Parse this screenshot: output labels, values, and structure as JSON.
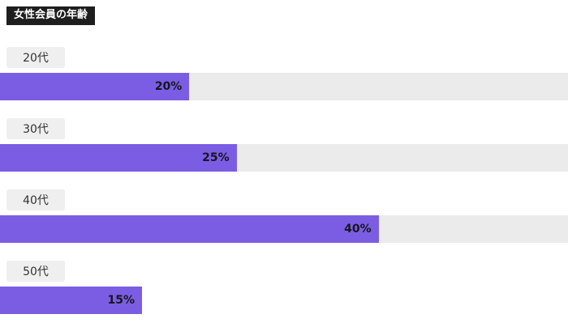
{
  "header": {
    "title": "女性会員の年齢",
    "title_bg": "#1e1e1e",
    "title_color": "#ffffff"
  },
  "chart_data": {
    "type": "bar",
    "orientation": "horizontal",
    "title": "女性会員の年齢",
    "categories": [
      "20代",
      "30代",
      "40代",
      "50代"
    ],
    "values": [
      20,
      25,
      40,
      15
    ],
    "value_labels": [
      "20%",
      "25%",
      "40%",
      "15%"
    ],
    "xlabel": "",
    "ylabel": "",
    "xlim": [
      0,
      60
    ],
    "grid": false,
    "legend": "none",
    "bar_color": "#7b5de3",
    "track_color": "#ebebeb",
    "chip_bg": "#efefef",
    "chip_text_color": "#333333",
    "value_label_color": "#16161d",
    "show_track": [
      true,
      true,
      true,
      false
    ]
  }
}
